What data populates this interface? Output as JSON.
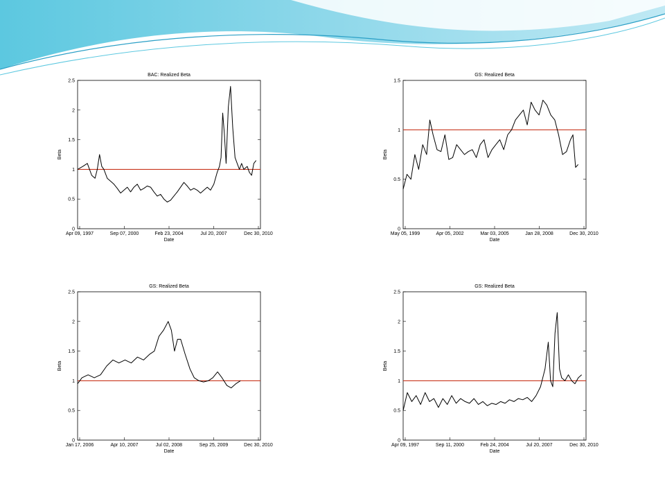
{
  "slide": {
    "header_colors": [
      "#8fd8ea",
      "#5cc8e0",
      "#bfe9f4",
      "#2a9fc6"
    ]
  },
  "chart_data": [
    {
      "type": "line",
      "title": "BAC: Realized Beta",
      "xlabel": "Date",
      "ylabel": "Beta",
      "ylim": [
        0,
        2.5
      ],
      "yticks": [
        0,
        0.5,
        1,
        1.5,
        2,
        2.5
      ],
      "xticks": [
        "Apr 09, 1997",
        "Sep 07, 2000",
        "Feb 23, 2004",
        "Jul 20, 2007",
        "Dec 30, 2010"
      ],
      "xlim": [
        "1997-04-09",
        "2010-12-30"
      ],
      "reference_line": {
        "y": 1,
        "color": "#c8341c"
      },
      "series": [
        {
          "color": "#000000",
          "x": [
            "1997-04-09",
            "1997-09-01",
            "1998-01-01",
            "1998-05-01",
            "1998-08-01",
            "1998-10-01",
            "1998-12-01",
            "1999-02-01",
            "1999-04-01",
            "1999-07-01",
            "1999-10-01",
            "2000-01-01",
            "2000-04-01",
            "2000-07-01",
            "2000-10-01",
            "2001-01-01",
            "2001-04-01",
            "2001-07-01",
            "2001-10-01",
            "2002-01-01",
            "2002-04-01",
            "2002-07-01",
            "2002-10-01",
            "2003-01-01",
            "2003-04-01",
            "2003-07-01",
            "2003-10-01",
            "2004-01-01",
            "2004-04-01",
            "2004-07-01",
            "2004-10-01",
            "2005-01-01",
            "2005-04-01",
            "2005-07-01",
            "2005-10-01",
            "2006-01-01",
            "2006-04-01",
            "2006-07-01",
            "2006-10-01",
            "2007-01-01",
            "2007-04-01",
            "2007-07-01",
            "2007-10-01",
            "2007-12-01",
            "2008-01-15",
            "2008-03-01",
            "2008-04-15",
            "2008-06-01",
            "2008-08-01",
            "2008-10-01",
            "2008-12-01",
            "2009-02-01",
            "2009-04-01",
            "2009-06-01",
            "2009-08-01",
            "2009-10-01",
            "2010-01-01",
            "2010-03-01",
            "2010-05-01",
            "2010-07-01",
            "2010-09-01"
          ],
          "y": [
            1.0,
            1.05,
            1.1,
            0.9,
            0.85,
            1.0,
            1.25,
            1.05,
            1.0,
            0.85,
            0.8,
            0.75,
            0.68,
            0.6,
            0.65,
            0.7,
            0.62,
            0.7,
            0.75,
            0.65,
            0.68,
            0.72,
            0.7,
            0.62,
            0.55,
            0.58,
            0.5,
            0.45,
            0.48,
            0.55,
            0.62,
            0.7,
            0.78,
            0.72,
            0.65,
            0.68,
            0.65,
            0.6,
            0.65,
            0.7,
            0.65,
            0.75,
            0.95,
            1.05,
            1.2,
            1.95,
            1.6,
            1.1,
            2.05,
            2.4,
            1.7,
            1.2,
            1.1,
            1.0,
            1.1,
            1.0,
            1.05,
            0.95,
            0.9,
            1.1,
            1.15
          ]
        }
      ]
    },
    {
      "type": "line",
      "title": "GS: Realized Beta",
      "xlabel": "Date",
      "ylabel": "Beta",
      "ylim": [
        0,
        1.5
      ],
      "yticks": [
        0,
        0.5,
        1,
        1.5
      ],
      "xticks": [
        "May 05, 1999",
        "Apr 05, 2002",
        "Mar 03, 2005",
        "Jan 28, 2008",
        "Dec 30, 2010"
      ],
      "xlim": [
        "1999-05-05",
        "2010-12-30"
      ],
      "reference_line": {
        "y": 1,
        "color": "#c8341c"
      },
      "series": [
        {
          "color": "#000000",
          "x": [
            "1999-05-05",
            "1999-08-01",
            "1999-11-01",
            "2000-02-01",
            "2000-05-01",
            "2000-08-01",
            "2000-11-01",
            "2001-01-15",
            "2001-04-01",
            "2001-07-01",
            "2001-10-01",
            "2002-01-01",
            "2002-04-01",
            "2002-07-01",
            "2002-10-01",
            "2003-01-01",
            "2003-04-01",
            "2003-07-01",
            "2003-10-01",
            "2004-01-01",
            "2004-04-01",
            "2004-07-01",
            "2004-10-01",
            "2005-01-01",
            "2005-04-01",
            "2005-07-01",
            "2005-10-01",
            "2006-01-01",
            "2006-04-01",
            "2006-07-01",
            "2006-10-01",
            "2007-01-01",
            "2007-04-01",
            "2007-07-01",
            "2007-10-01",
            "2008-01-01",
            "2008-04-01",
            "2008-07-01",
            "2008-10-01",
            "2009-01-01",
            "2009-04-01",
            "2009-07-01",
            "2009-10-01",
            "2010-01-01",
            "2010-03-01",
            "2010-05-01",
            "2010-07-01"
          ],
          "y": [
            0.4,
            0.55,
            0.5,
            0.75,
            0.6,
            0.85,
            0.75,
            1.1,
            0.95,
            0.8,
            0.78,
            0.95,
            0.7,
            0.72,
            0.85,
            0.8,
            0.75,
            0.78,
            0.8,
            0.72,
            0.85,
            0.9,
            0.72,
            0.8,
            0.85,
            0.9,
            0.8,
            0.95,
            1.0,
            1.1,
            1.15,
            1.2,
            1.05,
            1.28,
            1.2,
            1.15,
            1.3,
            1.25,
            1.15,
            1.1,
            0.95,
            0.75,
            0.78,
            0.9,
            0.95,
            0.62,
            0.65
          ]
        }
      ]
    },
    {
      "type": "line",
      "title": "GS: Realized Beta",
      "xlabel": "Date",
      "ylabel": "Beta",
      "ylim": [
        0,
        2.5
      ],
      "yticks": [
        0,
        0.5,
        1,
        1.5,
        2,
        2.5
      ],
      "xticks": [
        "Jan 17, 2006",
        "Apr 10, 2007",
        "Jul 02, 2008",
        "Sep 25, 2009",
        "Dec 30, 2010"
      ],
      "xlim": [
        "2006-01-17",
        "2010-12-30"
      ],
      "reference_line": {
        "y": 1,
        "color": "#c8341c"
      },
      "series": [
        {
          "color": "#000000",
          "x": [
            "2006-01-17",
            "2006-03-01",
            "2006-05-01",
            "2006-07-01",
            "2006-09-01",
            "2006-11-01",
            "2007-01-01",
            "2007-03-01",
            "2007-05-01",
            "2007-07-01",
            "2007-09-01",
            "2007-11-01",
            "2008-01-01",
            "2008-02-15",
            "2008-04-01",
            "2008-05-15",
            "2008-07-01",
            "2008-08-01",
            "2008-09-01",
            "2008-10-01",
            "2008-11-01",
            "2008-12-15",
            "2009-02-01",
            "2009-03-15",
            "2009-05-01",
            "2009-06-15",
            "2009-08-01",
            "2009-09-15",
            "2009-11-01",
            "2009-12-15",
            "2010-02-01",
            "2010-03-15",
            "2010-05-01",
            "2010-06-15"
          ],
          "y": [
            0.95,
            1.05,
            1.1,
            1.05,
            1.1,
            1.25,
            1.35,
            1.3,
            1.35,
            1.3,
            1.4,
            1.35,
            1.45,
            1.5,
            1.75,
            1.85,
            2.0,
            1.85,
            1.5,
            1.7,
            1.7,
            1.45,
            1.2,
            1.05,
            1.0,
            0.98,
            1.0,
            1.05,
            1.15,
            1.05,
            0.92,
            0.88,
            0.95,
            1.0
          ]
        }
      ]
    },
    {
      "type": "line",
      "title": "GS: Realized Beta",
      "xlabel": "Date",
      "ylabel": "Beta",
      "ylim": [
        0,
        2.5
      ],
      "yticks": [
        0,
        0.5,
        1,
        1.5,
        2,
        2.5
      ],
      "xticks": [
        "Apr 09, 1997",
        "Sep 11, 2000",
        "Feb 24, 2004",
        "Jul 20, 2007",
        "Dec 30, 2010"
      ],
      "xlim": [
        "1997-04-09",
        "2010-12-30"
      ],
      "reference_line": {
        "y": 1,
        "color": "#c8341c"
      },
      "series": [
        {
          "color": "#000000",
          "x": [
            "1997-04-09",
            "1997-08-01",
            "1997-12-01",
            "1998-04-01",
            "1998-08-01",
            "1998-12-01",
            "1999-04-01",
            "1999-08-01",
            "1999-12-01",
            "2000-04-01",
            "2000-08-01",
            "2000-12-01",
            "2001-04-01",
            "2001-08-01",
            "2001-12-01",
            "2002-04-01",
            "2002-08-01",
            "2002-12-01",
            "2003-04-01",
            "2003-08-01",
            "2003-12-01",
            "2004-04-01",
            "2004-08-01",
            "2004-12-01",
            "2005-04-01",
            "2005-08-01",
            "2005-12-01",
            "2006-04-01",
            "2006-08-01",
            "2006-12-01",
            "2007-04-01",
            "2007-08-01",
            "2007-12-01",
            "2008-03-01",
            "2008-05-01",
            "2008-07-01",
            "2008-09-01",
            "2008-11-01",
            "2009-01-01",
            "2009-03-01",
            "2009-06-01",
            "2009-09-01",
            "2009-12-01",
            "2010-03-01",
            "2010-06-01",
            "2010-09-01"
          ],
          "y": [
            0.5,
            0.8,
            0.65,
            0.75,
            0.6,
            0.8,
            0.65,
            0.7,
            0.55,
            0.7,
            0.6,
            0.75,
            0.62,
            0.7,
            0.65,
            0.62,
            0.7,
            0.6,
            0.65,
            0.58,
            0.62,
            0.6,
            0.65,
            0.62,
            0.68,
            0.65,
            0.7,
            0.68,
            0.72,
            0.65,
            0.75,
            0.9,
            1.2,
            1.65,
            1.0,
            0.9,
            1.8,
            2.15,
            1.2,
            1.05,
            1.0,
            1.1,
            1.0,
            0.95,
            1.05,
            1.1
          ]
        }
      ]
    }
  ]
}
